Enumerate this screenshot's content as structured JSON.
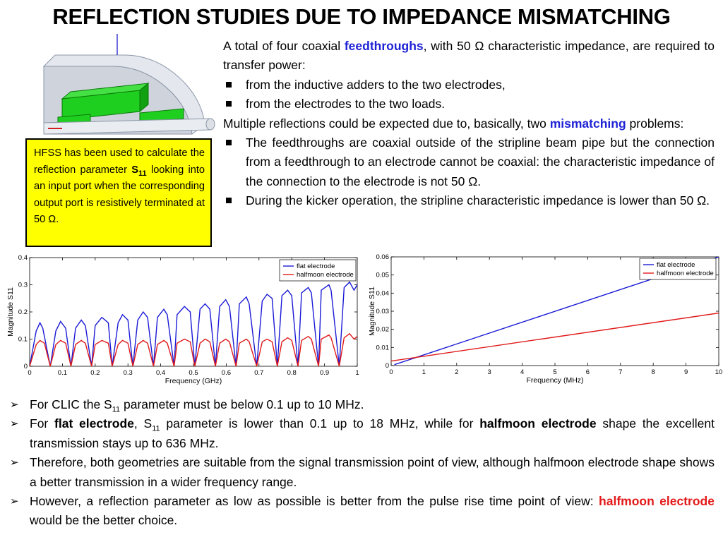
{
  "title": "REFLECTION STUDIES DUE TO IMPEDANCE MISMATCHING",
  "hfss_box": {
    "t1": "HFSS has been used to calculate the reflection parameter ",
    "s": "S",
    "sub": "11",
    "t2": " looking into an input port when the corresponding output port is resistively terminated at 50 Ω."
  },
  "right": {
    "p1a": "A total of four coaxial ",
    "p1b": "feedthroughs",
    "p1c": ", with 50 Ω characteristic impedance, are required to transfer power:",
    "b1": "from the inductive adders to the two electrodes,",
    "b2": "from the electrodes to the two loads.",
    "p2a": "Multiple reflections could be expected due to, basically, two ",
    "p2b": "mismatching",
    "p2c": " problems:",
    "b3": "The feedthroughs are coaxial outside of the stripline beam pipe but the connection from a feedthrough to an electrode cannot be coaxial: the characteristic impedance of the connection to the electrode is not 50 Ω.",
    "b4": "During the kicker operation, the stripline characteristic impedance is lower than 50 Ω."
  },
  "bottom": {
    "l1a": "For CLIC the S",
    "l1sub": "11",
    "l1b": " parameter must be below 0.1 up to 10 MHz.",
    "l2a": "For ",
    "l2b": "flat electrode",
    "l2c": ", S",
    "l2sub": "11",
    "l2d": " parameter is lower than 0.1 up to 18 MHz, while for ",
    "l2e": "halfmoon electrode",
    "l2f": " shape the excellent transmission stays up to 636 MHz.",
    "l3": "Therefore, both geometries are suitable from the signal transmission point of view, although halfmoon electrode shape shows a better transmission in a wider frequency range.",
    "l4a": "However, a reflection parameter as low as possible is better from the pulse rise time point of view: ",
    "l4b": "halfmoon electrode",
    "l4c": " would be the better choice."
  },
  "colors": {
    "flat": "#1a1ad6",
    "halfmoon": "#e01a1a",
    "box": "#ffff00",
    "accent_blue": "#1f23d6",
    "accent_red": "#e31818"
  },
  "chart_data": [
    {
      "type": "line",
      "xlabel": "Frequency (GHz)",
      "ylabel": "Magnitude S11",
      "xlim": [
        0,
        1
      ],
      "ylim": [
        0,
        0.4
      ],
      "xticks": [
        "0",
        "0.1",
        "0.2",
        "0.3",
        "0.4",
        "0.5",
        "0.6",
        "0.7",
        "0.8",
        "0.9",
        "1"
      ],
      "yticks": [
        "0",
        "0.1",
        "0.2",
        "0.3",
        "0.4"
      ],
      "legend": "top-right",
      "series": [
        {
          "name": "flat electrode",
          "color": "#1a1ad6",
          "x": [
            0,
            0.02,
            0.0315,
            0.04,
            0.063,
            0.08,
            0.0945,
            0.11,
            0.126,
            0.14,
            0.1575,
            0.17,
            0.189,
            0.2,
            0.2205,
            0.24,
            0.252,
            0.27,
            0.2835,
            0.3,
            0.315,
            0.33,
            0.3465,
            0.36,
            0.378,
            0.39,
            0.4095,
            0.42,
            0.441,
            0.45,
            0.4725,
            0.49,
            0.504,
            0.52,
            0.5355,
            0.55,
            0.567,
            0.58,
            0.5985,
            0.61,
            0.63,
            0.64,
            0.6615,
            0.67,
            0.693,
            0.71,
            0.7245,
            0.74,
            0.756,
            0.77,
            0.7875,
            0.8,
            0.819,
            0.83,
            0.8505,
            0.86,
            0.882,
            0.89,
            0.9135,
            0.92,
            0.945,
            0.96,
            0.9765,
            0.99,
            1.0
          ],
          "y": [
            0,
            0.13,
            0.16,
            0.14,
            0,
            0.13,
            0.165,
            0.14,
            0,
            0.14,
            0.17,
            0.15,
            0,
            0.15,
            0.18,
            0.16,
            0,
            0.16,
            0.19,
            0.17,
            0,
            0.17,
            0.2,
            0.18,
            0,
            0.18,
            0.21,
            0.19,
            0,
            0.19,
            0.22,
            0.2,
            0,
            0.21,
            0.23,
            0.21,
            0,
            0.22,
            0.245,
            0.22,
            0,
            0.23,
            0.255,
            0.23,
            0,
            0.24,
            0.265,
            0.25,
            0,
            0.26,
            0.28,
            0.26,
            0,
            0.27,
            0.29,
            0.27,
            0,
            0.28,
            0.3,
            0.28,
            0,
            0.29,
            0.31,
            0.28,
            0.3
          ]
        },
        {
          "name": "halfmoon electrode",
          "color": "#e01a1a",
          "x": [
            0,
            0.02,
            0.0315,
            0.045,
            0.063,
            0.08,
            0.0945,
            0.11,
            0.126,
            0.14,
            0.1575,
            0.17,
            0.189,
            0.2,
            0.2205,
            0.24,
            0.252,
            0.27,
            0.2835,
            0.3,
            0.315,
            0.33,
            0.3465,
            0.36,
            0.378,
            0.39,
            0.4095,
            0.42,
            0.441,
            0.45,
            0.4725,
            0.49,
            0.504,
            0.52,
            0.5355,
            0.55,
            0.567,
            0.58,
            0.5985,
            0.61,
            0.63,
            0.64,
            0.6615,
            0.67,
            0.693,
            0.71,
            0.7245,
            0.74,
            0.756,
            0.77,
            0.7875,
            0.8,
            0.819,
            0.83,
            0.8505,
            0.86,
            0.882,
            0.89,
            0.9135,
            0.92,
            0.945,
            0.96,
            0.9765,
            0.99,
            1.0
          ],
          "y": [
            0,
            0.08,
            0.095,
            0.085,
            0,
            0.08,
            0.095,
            0.085,
            0,
            0.08,
            0.095,
            0.085,
            0,
            0.08,
            0.095,
            0.085,
            0,
            0.08,
            0.095,
            0.085,
            0,
            0.08,
            0.095,
            0.085,
            0,
            0.08,
            0.095,
            0.085,
            0,
            0.085,
            0.1,
            0.09,
            0,
            0.085,
            0.1,
            0.09,
            0,
            0.085,
            0.1,
            0.09,
            0,
            0.085,
            0.1,
            0.09,
            0,
            0.09,
            0.1,
            0.09,
            0,
            0.09,
            0.105,
            0.095,
            0,
            0.095,
            0.11,
            0.1,
            0,
            0.1,
            0.115,
            0.105,
            0,
            0.105,
            0.12,
            0.1,
            0.11
          ]
        }
      ]
    },
    {
      "type": "line",
      "xlabel": "Frequency (MHz)",
      "ylabel": "Magnitude S11",
      "xlim": [
        0,
        10
      ],
      "ylim": [
        0,
        0.06
      ],
      "xticks": [
        "0",
        "1",
        "2",
        "3",
        "4",
        "5",
        "6",
        "7",
        "8",
        "9",
        "10"
      ],
      "yticks": [
        "0",
        "0.01",
        "0.02",
        "0.03",
        "0.04",
        "0.05",
        "0.06"
      ],
      "legend": "top-right",
      "series": [
        {
          "name": "flat electrode",
          "color": "#1a1ad6",
          "x": [
            0.1,
            10
          ],
          "y": [
            0.0005,
            0.06
          ]
        },
        {
          "name": "halfmoon electrode",
          "color": "#e01a1a",
          "x": [
            0,
            10
          ],
          "y": [
            0.0025,
            0.029
          ]
        }
      ]
    }
  ]
}
